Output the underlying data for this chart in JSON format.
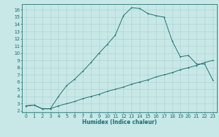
{
  "xlabel": "Humidex (Indice chaleur)",
  "background_color": "#c8e8e8",
  "grid_color": "#aacccc",
  "line_color": "#1a6b6b",
  "xlim": [
    -0.5,
    23.5
  ],
  "ylim": [
    1.8,
    16.8
  ],
  "yticks": [
    2,
    3,
    4,
    5,
    6,
    7,
    8,
    9,
    10,
    11,
    12,
    13,
    14,
    15,
    16
  ],
  "xticks": [
    0,
    1,
    2,
    3,
    4,
    5,
    6,
    7,
    8,
    9,
    10,
    11,
    12,
    13,
    14,
    15,
    16,
    17,
    18,
    19,
    20,
    21,
    22,
    23
  ],
  "curve1_x": [
    0,
    1,
    2,
    3,
    4,
    5,
    6,
    7,
    8,
    9,
    10,
    11,
    12,
    13,
    14,
    15,
    16,
    17,
    18,
    19,
    20,
    21,
    22,
    23
  ],
  "curve1_y": [
    2.7,
    2.8,
    2.3,
    2.3,
    4.0,
    5.5,
    6.4,
    7.5,
    8.7,
    10.0,
    11.2,
    12.5,
    15.2,
    16.3,
    16.2,
    15.5,
    15.2,
    15.0,
    11.7,
    9.5,
    9.7,
    8.5,
    8.5,
    6.3
  ],
  "curve2_x": [
    0,
    1,
    2,
    3,
    4,
    5,
    6,
    7,
    8,
    9,
    10,
    11,
    12,
    13,
    14,
    15,
    16,
    17,
    18,
    19,
    20,
    21,
    22,
    23
  ],
  "curve2_y": [
    2.7,
    2.8,
    2.3,
    2.3,
    2.7,
    3.0,
    3.3,
    3.7,
    4.0,
    4.3,
    4.7,
    5.0,
    5.3,
    5.7,
    6.0,
    6.3,
    6.7,
    7.0,
    7.3,
    7.7,
    8.0,
    8.3,
    8.7,
    9.0
  ],
  "tick_fontsize": 5.0,
  "xlabel_fontsize": 5.5,
  "lw": 0.7,
  "ms": 2.0,
  "mew": 0.6
}
